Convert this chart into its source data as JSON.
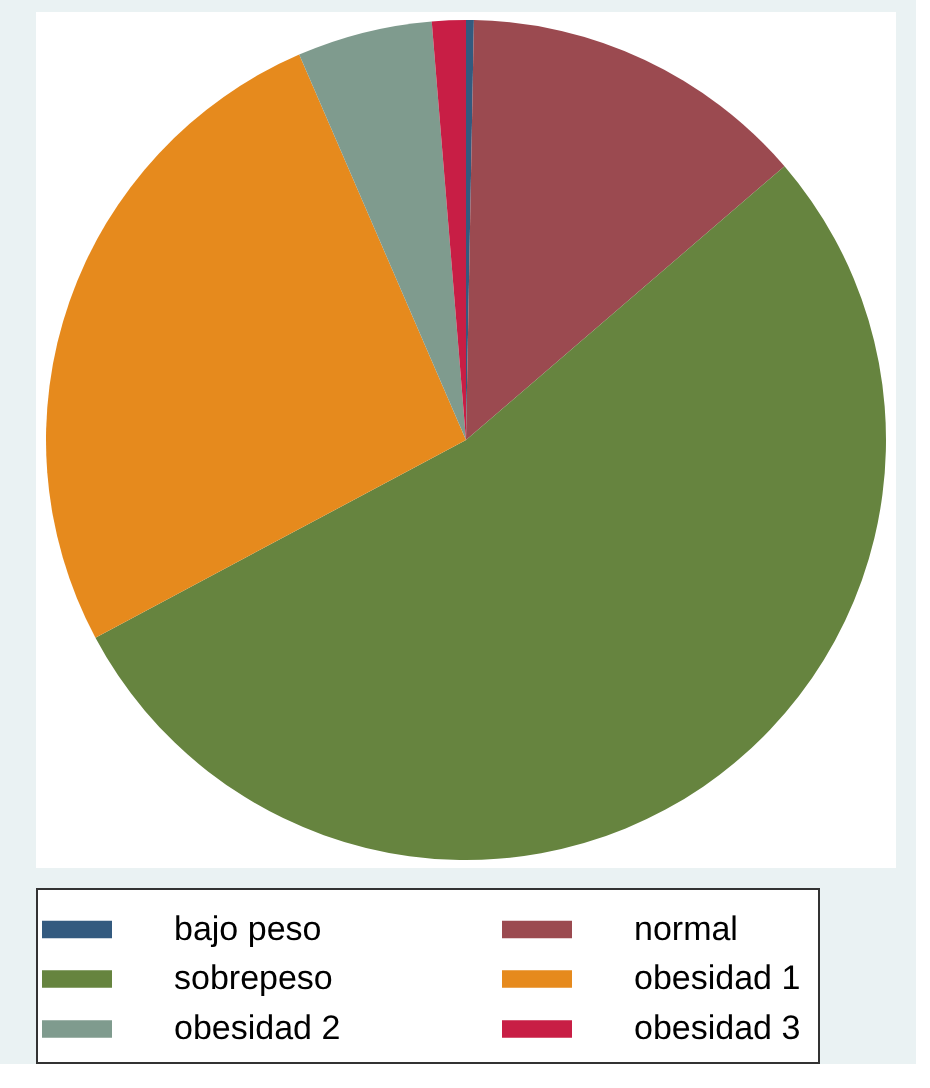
{
  "chart_data": {
    "type": "pie",
    "categories": [
      "bajo peso",
      "normal",
      "sobrepeso",
      "obesidad 1",
      "obesidad 2",
      "obesidad 3"
    ],
    "values": [
      0.3,
      13.4,
      53.5,
      26.3,
      5.2,
      1.3
    ],
    "colors": [
      "#335a7f",
      "#9b4a50",
      "#66843f",
      "#e68a1d",
      "#7f9b8e",
      "#c81e45"
    ],
    "legend": "bottom"
  }
}
